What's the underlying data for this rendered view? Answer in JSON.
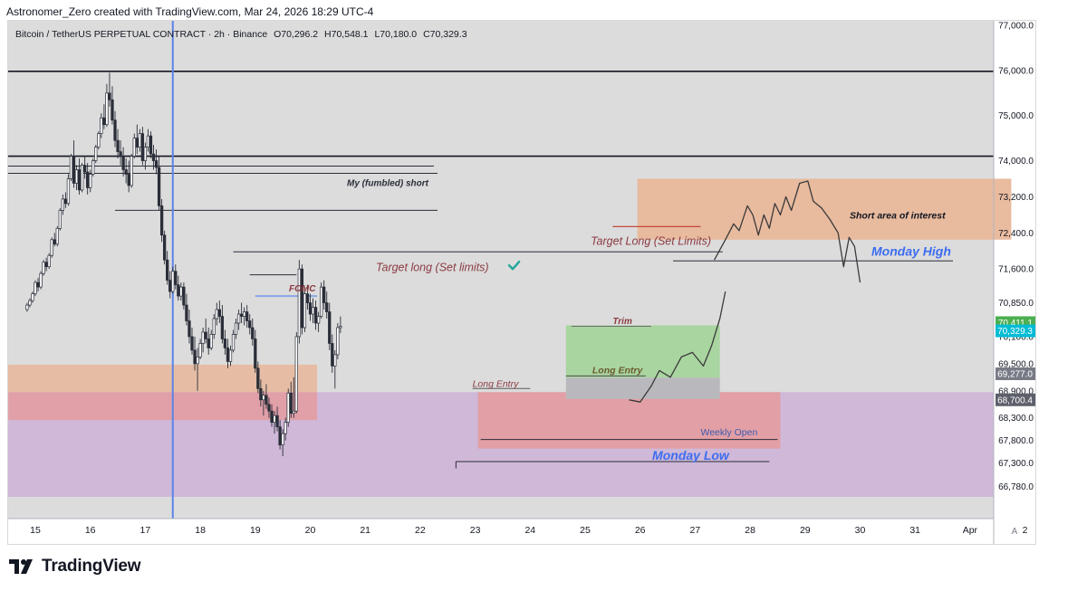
{
  "credit": "Astronomer_Zero created with TradingView.com, Mar 24, 2026 18:29 UTC-4",
  "brand": "TradingView",
  "header": {
    "symbol": "Bitcoin / TetherUS PERPETUAL CONTRACT · 2h · Binance",
    "open": "O70,296.2",
    "high": "H70,548.1",
    "low": "L70,180.0",
    "close": "C70,329.3"
  },
  "price_scale_footer": "A",
  "chart_data": {
    "type": "candlestick",
    "title": "Bitcoin / TetherUS PERPETUAL CONTRACT · 2h · Binance",
    "x_ticks": [
      "15",
      "16",
      "17",
      "18",
      "19",
      "20",
      "21",
      "22",
      "23",
      "24",
      "25",
      "26",
      "27",
      "28",
      "29",
      "30",
      "31",
      "Apr",
      "2"
    ],
    "y_ticks": [
      "77,000.0",
      "76,000.0",
      "75,000.0",
      "74,000.0",
      "73,200.0",
      "72,400.0",
      "71,600.0",
      "70,850.0",
      "70,100.0",
      "69,500.0",
      "68,900.0",
      "68,300.0",
      "67,800.0",
      "67,300.0",
      "66,780.0"
    ],
    "ylim": [
      66500,
      77200
    ],
    "price_labels": [
      {
        "text": "70,411.1",
        "color": "#4caf50"
      },
      {
        "text": "70,329.3",
        "color": "#00bcd4"
      },
      {
        "text": "69,277.0",
        "color": "#787b86"
      },
      {
        "text": "68,700.4",
        "color": "#5d606b"
      }
    ],
    "candles": [
      [
        14.85,
        70700,
        70850,
        70650,
        70800
      ],
      [
        14.9,
        70800,
        70950,
        70750,
        70900
      ],
      [
        14.95,
        70900,
        71100,
        70850,
        71050
      ],
      [
        15.0,
        71050,
        71350,
        71000,
        71300
      ],
      [
        15.05,
        71300,
        71400,
        71100,
        71200
      ],
      [
        15.1,
        71200,
        71550,
        71150,
        71500
      ],
      [
        15.15,
        71500,
        71800,
        71450,
        71750
      ],
      [
        15.2,
        71750,
        71850,
        71550,
        71650
      ],
      [
        15.25,
        71650,
        71950,
        71600,
        71900
      ],
      [
        15.3,
        71900,
        72300,
        71850,
        72250
      ],
      [
        15.35,
        72250,
        72400,
        72100,
        72150
      ],
      [
        15.4,
        72150,
        72550,
        72100,
        72500
      ],
      [
        15.45,
        72500,
        72950,
        72450,
        72900
      ],
      [
        15.5,
        72900,
        73250,
        72800,
        73150
      ],
      [
        15.55,
        73150,
        73300,
        72950,
        73050
      ],
      [
        15.6,
        73050,
        73700,
        73000,
        73600
      ],
      [
        15.65,
        73600,
        74150,
        73550,
        74100
      ],
      [
        15.7,
        74100,
        74450,
        73400,
        73500
      ],
      [
        15.75,
        73500,
        73900,
        73350,
        73800
      ],
      [
        15.8,
        73800,
        74050,
        73250,
        73350
      ],
      [
        15.85,
        73350,
        73950,
        73300,
        73900
      ],
      [
        15.9,
        73900,
        74100,
        73600,
        73750
      ],
      [
        15.95,
        73750,
        73950,
        73250,
        73400
      ],
      [
        16.0,
        73400,
        73800,
        73300,
        73700
      ],
      [
        16.05,
        73700,
        74050,
        73650,
        74000
      ],
      [
        16.1,
        74000,
        74350,
        73950,
        74300
      ],
      [
        16.15,
        74300,
        74650,
        74250,
        74600
      ],
      [
        16.2,
        74600,
        75050,
        74500,
        74950
      ],
      [
        16.25,
        74950,
        75250,
        74700,
        74800
      ],
      [
        16.3,
        74800,
        75700,
        74750,
        75500
      ],
      [
        16.35,
        75500,
        75950,
        75200,
        75350
      ],
      [
        16.4,
        75350,
        75650,
        74800,
        74900
      ],
      [
        16.45,
        74900,
        75100,
        74300,
        74450
      ],
      [
        16.5,
        74450,
        74700,
        74050,
        74200
      ],
      [
        16.55,
        74200,
        74450,
        73900,
        74100
      ],
      [
        16.6,
        74100,
        74300,
        73650,
        73800
      ],
      [
        16.65,
        73800,
        74050,
        73500,
        73700
      ],
      [
        16.7,
        73700,
        74000,
        73300,
        73450
      ],
      [
        16.75,
        73450,
        74150,
        73400,
        74100
      ],
      [
        16.8,
        74100,
        74600,
        74050,
        74500
      ],
      [
        16.85,
        74500,
        74800,
        74150,
        74300
      ],
      [
        16.9,
        74300,
        74700,
        74200,
        74600
      ],
      [
        16.95,
        74600,
        74750,
        73900,
        74000
      ],
      [
        17.0,
        74000,
        74400,
        73800,
        74300
      ],
      [
        17.05,
        74300,
        74700,
        74200,
        74550
      ],
      [
        17.1,
        74550,
        74650,
        74050,
        74150
      ],
      [
        17.15,
        74150,
        74350,
        73800,
        74000
      ],
      [
        17.2,
        74000,
        74250,
        73700,
        73850
      ],
      [
        17.25,
        73850,
        74100,
        72900,
        73000
      ],
      [
        17.3,
        73000,
        73150,
        72200,
        72350
      ],
      [
        17.35,
        72350,
        72450,
        71700,
        71800
      ],
      [
        17.4,
        71800,
        72000,
        71250,
        71350
      ],
      [
        17.45,
        71350,
        71550,
        70950,
        71100
      ],
      [
        17.5,
        71100,
        71650,
        71050,
        71550
      ],
      [
        17.55,
        71550,
        71700,
        71150,
        71250
      ],
      [
        17.6,
        71250,
        71450,
        70900,
        71000
      ],
      [
        17.65,
        71000,
        71300,
        70900,
        71200
      ],
      [
        17.7,
        71200,
        71300,
        70700,
        70800
      ],
      [
        17.75,
        70800,
        71050,
        70350,
        70450
      ],
      [
        17.8,
        70450,
        70700,
        69950,
        70100
      ],
      [
        17.85,
        70100,
        70300,
        69700,
        69800
      ],
      [
        17.9,
        69800,
        70100,
        69350,
        69500
      ],
      [
        17.95,
        69500,
        69850,
        68900,
        69650
      ],
      [
        18.0,
        69650,
        70050,
        69600,
        69950
      ],
      [
        18.05,
        69950,
        70300,
        69750,
        70200
      ],
      [
        18.1,
        70200,
        70500,
        69950,
        70050
      ],
      [
        18.15,
        70050,
        70300,
        69700,
        69850
      ],
      [
        18.2,
        69850,
        70250,
        69800,
        70150
      ],
      [
        18.25,
        70150,
        70600,
        70050,
        70500
      ],
      [
        18.3,
        70500,
        70850,
        70350,
        70700
      ],
      [
        18.35,
        70700,
        70900,
        70400,
        70550
      ],
      [
        18.4,
        70550,
        70800,
        69950,
        70050
      ],
      [
        18.45,
        70050,
        70250,
        69700,
        69850
      ],
      [
        18.5,
        69850,
        70050,
        69400,
        69550
      ],
      [
        18.55,
        69550,
        69900,
        69450,
        69800
      ],
      [
        18.6,
        69800,
        70250,
        69750,
        70150
      ],
      [
        18.65,
        70150,
        70500,
        70050,
        70400
      ],
      [
        18.7,
        70400,
        70700,
        70250,
        70600
      ],
      [
        18.75,
        70600,
        70850,
        70400,
        70550
      ],
      [
        18.8,
        70550,
        70750,
        70350,
        70650
      ],
      [
        18.85,
        70650,
        70800,
        70300,
        70450
      ],
      [
        18.9,
        70450,
        70600,
        70150,
        70300
      ],
      [
        18.95,
        70300,
        70500,
        69900,
        70050
      ],
      [
        19.0,
        70050,
        70250,
        69300,
        69400
      ],
      [
        19.05,
        69400,
        69550,
        68850,
        68950
      ],
      [
        19.1,
        68950,
        69150,
        68550,
        68700
      ],
      [
        19.15,
        68700,
        68900,
        68350,
        68800
      ],
      [
        19.2,
        68800,
        69050,
        68500,
        68600
      ],
      [
        19.25,
        68600,
        68750,
        68300,
        68450
      ],
      [
        19.3,
        68450,
        68600,
        68100,
        68200
      ],
      [
        19.35,
        68200,
        68450,
        67950,
        68350
      ],
      [
        19.4,
        68350,
        68550,
        68000,
        68100
      ],
      [
        19.45,
        68100,
        68250,
        67600,
        67700
      ],
      [
        19.5,
        67700,
        68050,
        67450,
        67950
      ],
      [
        19.55,
        67950,
        68300,
        67800,
        68200
      ],
      [
        19.6,
        68200,
        68950,
        68100,
        68850
      ],
      [
        19.65,
        68850,
        69100,
        68300,
        68400
      ],
      [
        19.7,
        68400,
        69200,
        68300,
        68450
      ],
      [
        19.75,
        68450,
        70200,
        68400,
        70100
      ],
      [
        19.8,
        70100,
        71800,
        69950,
        71600
      ],
      [
        19.85,
        71600,
        71700,
        70150,
        70300
      ],
      [
        19.9,
        70300,
        71200,
        70200,
        71050
      ],
      [
        19.95,
        71050,
        71250,
        70700,
        70850
      ],
      [
        20.0,
        70850,
        71050,
        70450,
        70600
      ],
      [
        20.05,
        70600,
        70950,
        70400,
        70750
      ],
      [
        20.1,
        70750,
        70900,
        70250,
        70400
      ],
      [
        20.15,
        70400,
        70650,
        70200,
        70550
      ],
      [
        20.2,
        70550,
        71300,
        70500,
        71200
      ],
      [
        20.25,
        71200,
        71350,
        70700,
        70850
      ],
      [
        20.3,
        70850,
        71100,
        70500,
        70650
      ],
      [
        20.35,
        70650,
        70850,
        69800,
        69950
      ],
      [
        20.4,
        69950,
        70150,
        69300,
        69450
      ],
      [
        20.45,
        69450,
        69800,
        68950,
        69700
      ],
      [
        20.5,
        69700,
        70400,
        69600,
        70300
      ],
      [
        20.55,
        70300,
        70548,
        70180,
        70329
      ]
    ],
    "annotations": [
      {
        "text": "My (fumbled) short",
        "color": "#2a2e39"
      },
      {
        "text": "Short area of interest",
        "color": "#131722"
      },
      {
        "text": "Target Long (Set Limits)",
        "color": "#8b3a42"
      },
      {
        "text": "Monday High",
        "color": "#3d6df0"
      },
      {
        "text": "Target long (Set limits)",
        "color": "#8b3a42"
      },
      {
        "text": "FOMC",
        "color": "#8b3a42"
      },
      {
        "text": "Trim",
        "color": "#8b3a42"
      },
      {
        "text": "Long Entry",
        "color": "#6b5a2e"
      },
      {
        "text": "Long Entry",
        "color": "#8b3a42"
      },
      {
        "text": "Weekly Open",
        "color": "#3d5bb0"
      },
      {
        "text": "Monday Low",
        "color": "#3d6df0"
      }
    ]
  },
  "colors": {
    "background": "#dcdcdc",
    "candle": "#2a2e39",
    "vertical_line": "#5b84e8",
    "purple_zone": "#cfb8d8",
    "red_zone": "#e59a9c",
    "orange_zone": "#e8b79a",
    "green_box": "#a9d5a0",
    "grey_box": "#b9b9bd"
  }
}
